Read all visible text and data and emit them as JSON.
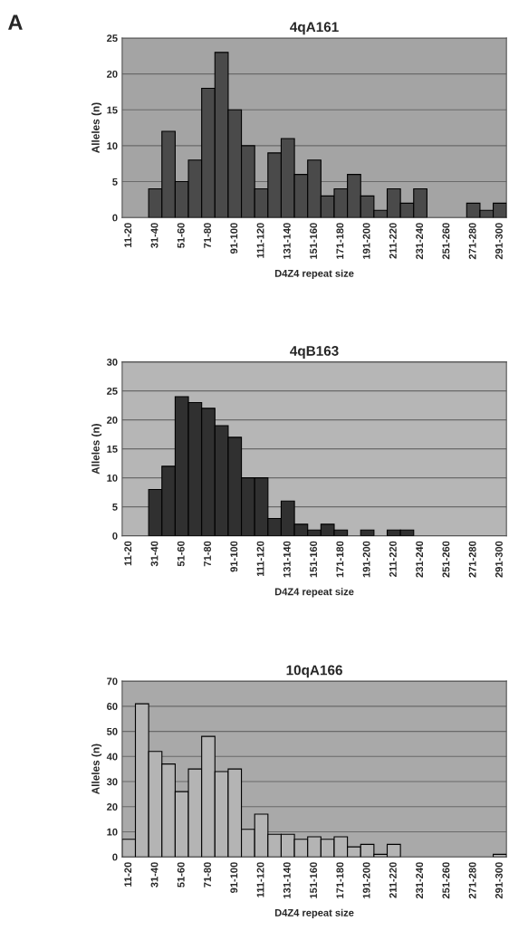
{
  "chart_data": [
    {
      "type": "bar",
      "title": "4qA161",
      "xlabel": "D4Z4 repeat size",
      "ylabel": "Alleles (n)",
      "annotations": [
        "A"
      ],
      "categories": [
        "11-20",
        null,
        "31-40",
        null,
        "51-60",
        null,
        "71-80",
        null,
        "91-100",
        null,
        "111-120",
        null,
        "131-140",
        null,
        "151-160",
        null,
        "171-180",
        null,
        "191-200",
        null,
        "211-220",
        null,
        "231-240",
        null,
        "251-260",
        null,
        "271-280",
        null,
        "291-300"
      ],
      "values": [
        null,
        null,
        4,
        12,
        5,
        8,
        18,
        23,
        15,
        10,
        4,
        9,
        11,
        6,
        8,
        3,
        4,
        6,
        3,
        1,
        4,
        2,
        4,
        null,
        null,
        null,
        2,
        1,
        2
      ],
      "color": "#4a4a4a",
      "ylim": [
        0,
        25
      ],
      "yticks": [
        0,
        5,
        10,
        15,
        20,
        25
      ],
      "grid": "y"
    },
    {
      "type": "bar",
      "title": "4qB163",
      "xlabel": "D4Z4 repeat size",
      "ylabel": "Alleles (n)",
      "categories": [
        "11-20",
        null,
        "31-40",
        null,
        "51-60",
        null,
        "71-80",
        null,
        "91-100",
        null,
        "111-120",
        null,
        "131-140",
        null,
        "151-160",
        null,
        "171-180",
        null,
        "191-200",
        null,
        "211-220",
        null,
        "231-240",
        null,
        "251-260",
        null,
        "271-280",
        null,
        "291-300"
      ],
      "values": [
        null,
        null,
        8,
        12,
        24,
        23,
        22,
        19,
        17,
        10,
        10,
        3,
        6,
        2,
        1,
        2,
        1,
        null,
        1,
        null,
        1,
        1,
        null,
        null,
        null,
        null,
        null,
        null,
        null
      ],
      "color": "#303030",
      "ylim": [
        0,
        30
      ],
      "yticks": [
        0,
        5,
        10,
        15,
        20,
        25,
        30
      ],
      "grid": "y"
    },
    {
      "type": "bar",
      "title": "10qA166",
      "xlabel": "D4Z4 repeat size",
      "ylabel": "Alleles (n)",
      "categories": [
        "11-20",
        null,
        "31-40",
        null,
        "51-60",
        null,
        "71-80",
        null,
        "91-100",
        null,
        "111-120",
        null,
        "131-140",
        null,
        "151-160",
        null,
        "171-180",
        null,
        "191-200",
        null,
        "211-220",
        null,
        "231-240",
        null,
        "251-260",
        null,
        "271-280",
        null,
        "291-300"
      ],
      "values": [
        7,
        61,
        42,
        37,
        26,
        35,
        48,
        34,
        35,
        11,
        17,
        9,
        9,
        7,
        8,
        7,
        8,
        4,
        5,
        1,
        5,
        null,
        null,
        null,
        null,
        null,
        null,
        null,
        1
      ],
      "color": "#b4b4b4",
      "ylim": [
        0,
        70
      ],
      "yticks": [
        0,
        10,
        20,
        30,
        40,
        50,
        60,
        70
      ],
      "grid": "y"
    }
  ]
}
